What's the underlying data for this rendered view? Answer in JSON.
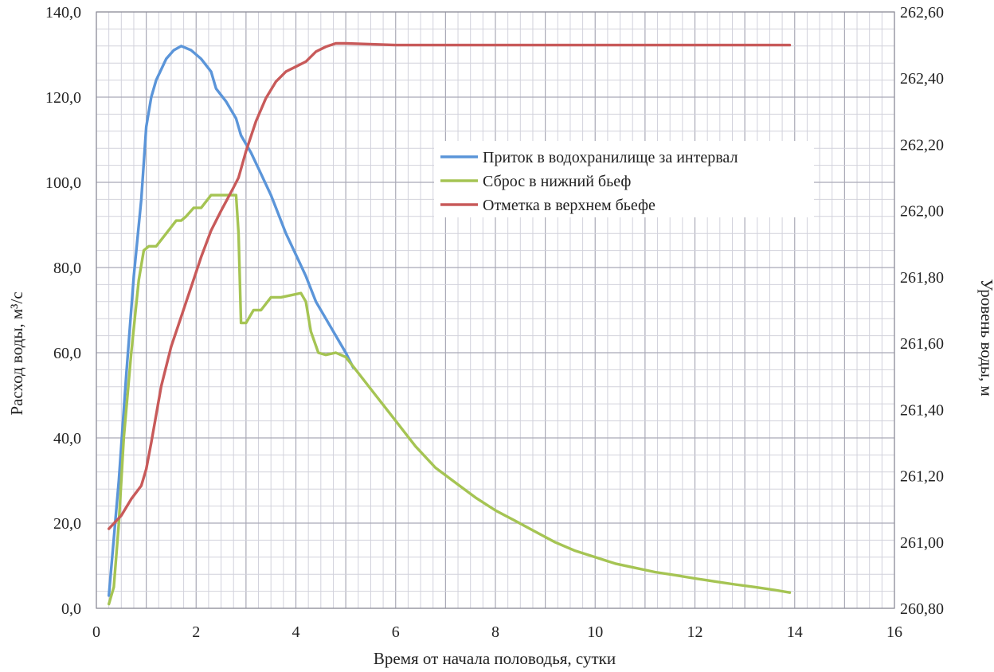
{
  "chart_data": {
    "type": "line",
    "xlabel": "Время от начала половодья, сутки",
    "ylabel_left": "Расход воды, м³/с",
    "ylabel_right": "Уровень воды, м",
    "x_range": [
      0,
      16
    ],
    "y_left_range": [
      0,
      140
    ],
    "y_right_range": [
      260.8,
      262.6
    ],
    "x_ticks": [
      "0",
      "2",
      "4",
      "6",
      "8",
      "10",
      "12",
      "14",
      "16"
    ],
    "y_left_ticks": [
      "0,0",
      "20,0",
      "40,0",
      "60,0",
      "80,0",
      "100,0",
      "120,0",
      "140,0"
    ],
    "y_right_ticks": [
      "260,80",
      "261,00",
      "261,20",
      "261,40",
      "261,60",
      "261,80",
      "262,00",
      "262,20",
      "262,40",
      "262,60"
    ],
    "grid": true,
    "legend_position": "upper-right-center",
    "series": [
      {
        "name": "Приток в водохранилище за интервал",
        "axis": "left",
        "color": "#5b95d9",
        "points": [
          [
            0.25,
            3
          ],
          [
            0.45,
            30
          ],
          [
            0.6,
            55
          ],
          [
            0.75,
            78
          ],
          [
            0.9,
            96
          ],
          [
            1.0,
            113
          ],
          [
            1.1,
            120
          ],
          [
            1.2,
            124
          ],
          [
            1.4,
            129
          ],
          [
            1.55,
            131
          ],
          [
            1.7,
            132
          ],
          [
            1.9,
            131
          ],
          [
            2.1,
            129
          ],
          [
            2.3,
            126
          ],
          [
            2.4,
            122
          ],
          [
            2.6,
            119
          ],
          [
            2.8,
            115
          ],
          [
            2.9,
            111
          ],
          [
            3.1,
            107
          ],
          [
            3.3,
            102
          ],
          [
            3.5,
            97
          ],
          [
            3.6,
            94
          ],
          [
            3.8,
            88
          ],
          [
            4.0,
            83
          ],
          [
            4.2,
            78
          ],
          [
            4.4,
            72
          ],
          [
            4.6,
            68
          ],
          [
            4.8,
            64
          ],
          [
            5.0,
            60
          ],
          [
            5.15,
            56.5
          ]
        ]
      },
      {
        "name": "Сброс в нижний бьеф",
        "axis": "left",
        "color": "#a5c453",
        "points": [
          [
            0.25,
            1
          ],
          [
            0.35,
            5
          ],
          [
            0.45,
            20
          ],
          [
            0.55,
            40
          ],
          [
            0.7,
            60
          ],
          [
            0.85,
            77
          ],
          [
            0.95,
            84
          ],
          [
            1.05,
            85
          ],
          [
            1.2,
            85
          ],
          [
            1.4,
            88
          ],
          [
            1.6,
            91
          ],
          [
            1.7,
            91
          ],
          [
            1.8,
            92
          ],
          [
            1.95,
            94
          ],
          [
            2.1,
            94
          ],
          [
            2.3,
            97
          ],
          [
            2.5,
            97
          ],
          [
            2.7,
            97
          ],
          [
            2.8,
            97
          ],
          [
            2.85,
            88
          ],
          [
            2.9,
            67
          ],
          [
            3.0,
            67
          ],
          [
            3.15,
            70
          ],
          [
            3.3,
            70
          ],
          [
            3.5,
            73
          ],
          [
            3.7,
            73
          ],
          [
            3.9,
            73.5
          ],
          [
            4.1,
            74
          ],
          [
            4.2,
            72
          ],
          [
            4.3,
            65
          ],
          [
            4.45,
            60
          ],
          [
            4.6,
            59.5
          ],
          [
            4.8,
            60
          ],
          [
            5.0,
            59
          ],
          [
            5.2,
            56
          ],
          [
            5.6,
            50
          ],
          [
            6.0,
            44
          ],
          [
            6.4,
            38
          ],
          [
            6.8,
            33
          ],
          [
            7.2,
            29.5
          ],
          [
            7.6,
            26
          ],
          [
            8.0,
            23
          ],
          [
            8.4,
            20.5
          ],
          [
            8.8,
            18
          ],
          [
            9.2,
            15.5
          ],
          [
            9.6,
            13.5
          ],
          [
            10.0,
            12
          ],
          [
            10.4,
            10.5
          ],
          [
            10.8,
            9.5
          ],
          [
            11.2,
            8.5
          ],
          [
            11.6,
            7.8
          ],
          [
            12.0,
            7
          ],
          [
            12.4,
            6.3
          ],
          [
            12.8,
            5.6
          ],
          [
            13.2,
            5
          ],
          [
            13.6,
            4.3
          ],
          [
            13.9,
            3.7
          ]
        ]
      },
      {
        "name": "Отметка в верхнем бьефе",
        "axis": "right",
        "color": "#c85a5a",
        "points": [
          [
            0.25,
            261.04
          ],
          [
            0.5,
            261.08
          ],
          [
            0.7,
            261.13
          ],
          [
            0.9,
            261.17
          ],
          [
            1.0,
            261.22
          ],
          [
            1.1,
            261.3
          ],
          [
            1.3,
            261.47
          ],
          [
            1.5,
            261.59
          ],
          [
            1.7,
            261.68
          ],
          [
            1.9,
            261.77
          ],
          [
            2.1,
            261.86
          ],
          [
            2.3,
            261.94
          ],
          [
            2.5,
            262.0
          ],
          [
            2.75,
            262.07
          ],
          [
            2.85,
            262.1
          ],
          [
            3.0,
            262.18
          ],
          [
            3.2,
            262.27
          ],
          [
            3.4,
            262.34
          ],
          [
            3.6,
            262.39
          ],
          [
            3.8,
            262.42
          ],
          [
            4.0,
            262.435
          ],
          [
            4.2,
            262.45
          ],
          [
            4.4,
            262.48
          ],
          [
            4.6,
            262.495
          ],
          [
            4.8,
            262.505
          ],
          [
            5.0,
            262.505
          ],
          [
            6.0,
            262.5
          ],
          [
            8.0,
            262.5
          ],
          [
            10.0,
            262.5
          ],
          [
            12.0,
            262.5
          ],
          [
            13.9,
            262.5
          ]
        ]
      }
    ]
  }
}
